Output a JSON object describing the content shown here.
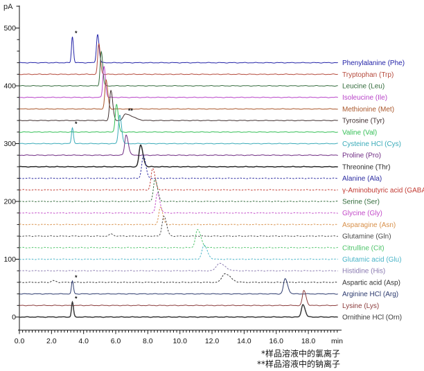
{
  "axes": {
    "y_unit": "pA",
    "x_unit": "min"
  },
  "footnotes": [
    "*样品溶液中的氯离子",
    "**样品溶液中的钠离子"
  ],
  "markers_legend": {
    "single_star": "*",
    "double_star": "**"
  },
  "chart_data": {
    "type": "line",
    "title": "",
    "x_axis": {
      "unit": "min",
      "min": 0,
      "max": 19.85,
      "major_tick": 2.0,
      "minor_tick": 0.2,
      "tick_labels": [
        "0.0",
        "2.0",
        "4.0",
        "6.0",
        "8.0",
        "10.0",
        "12.0",
        "14.0",
        "16.0",
        "18.0"
      ]
    },
    "y_axis": {
      "unit": "pA",
      "min": 0,
      "max": 500,
      "major_tick": 100,
      "minor_tick": 20,
      "tick_labels": [
        "0",
        "100",
        "200",
        "300",
        "400",
        "500"
      ]
    },
    "grid": false,
    "legend_position": "right",
    "series": [
      {
        "name": "Phenylalanine (Phe)",
        "color": "#2323a8",
        "dashed": false,
        "offset_pA": 440,
        "peaks": [
          {
            "rt_min": 3.3,
            "height_pA": 45,
            "sigma_min": 0.055,
            "tail": 1.2,
            "marker": "*"
          },
          {
            "rt_min": 4.87,
            "height_pA": 49,
            "sigma_min": 0.07,
            "tail": 1.3
          }
        ]
      },
      {
        "name": "Tryptophan (Trp)",
        "color": "#b54a3c",
        "dashed": false,
        "offset_pA": 420,
        "peaks": [
          {
            "rt_min": 4.95,
            "height_pA": 53,
            "sigma_min": 0.07,
            "tail": 1.3
          }
        ]
      },
      {
        "name": "Leucine (Leu)",
        "color": "#336b3c",
        "dashed": false,
        "offset_pA": 400,
        "peaks": [
          {
            "rt_min": 5.1,
            "height_pA": 59,
            "sigma_min": 0.07,
            "tail": 1.3
          }
        ]
      },
      {
        "name": "Isoleucine (Ile)",
        "color": "#b844c8",
        "dashed": false,
        "offset_pA": 380,
        "peaks": [
          {
            "rt_min": 5.27,
            "height_pA": 54,
            "sigma_min": 0.07,
            "tail": 1.3
          }
        ]
      },
      {
        "name": "Methionine (Met)",
        "color": "#a9562a",
        "dashed": false,
        "offset_pA": 360,
        "peaks": [
          {
            "rt_min": 5.4,
            "height_pA": 50,
            "sigma_min": 0.075,
            "tail": 1.4
          }
        ]
      },
      {
        "name": "Tyrosine (Tyr)",
        "color": "#403030",
        "dashed": false,
        "offset_pA": 340,
        "peaks": [
          {
            "rt_min": 5.7,
            "height_pA": 52,
            "sigma_min": 0.08,
            "tail": 1.4
          },
          {
            "rt_min": 6.62,
            "height_pA": 11,
            "sigma_min": 0.15,
            "tail": 3.0,
            "marker": "**"
          }
        ]
      },
      {
        "name": "Valine (Val)",
        "color": "#33bf55",
        "dashed": false,
        "offset_pA": 320,
        "peaks": [
          {
            "rt_min": 6.05,
            "height_pA": 48,
            "sigma_min": 0.08,
            "tail": 1.3
          }
        ]
      },
      {
        "name": "Cysteine HCl (Cys)",
        "color": "#38aab8",
        "dashed": false,
        "offset_pA": 300,
        "peaks": [
          {
            "rt_min": 3.3,
            "height_pA": 28,
            "sigma_min": 0.055,
            "tail": 1.2,
            "marker": "*"
          },
          {
            "rt_min": 6.25,
            "height_pA": 50,
            "sigma_min": 0.08,
            "tail": 1.4
          }
        ]
      },
      {
        "name": "Proline (Pro)",
        "color": "#6e2a82",
        "dashed": false,
        "offset_pA": 280,
        "peaks": [
          {
            "rt_min": 6.65,
            "height_pA": 35,
            "sigma_min": 0.09,
            "tail": 1.5
          }
        ]
      },
      {
        "name": "Threonine (Thr)",
        "color": "#2a2a2a",
        "dashed": false,
        "thick": true,
        "offset_pA": 260,
        "peaks": [
          {
            "rt_min": 7.55,
            "height_pA": 37,
            "sigma_min": 0.1,
            "tail": 1.5
          }
        ]
      },
      {
        "name": "Alanine (Ala)",
        "color": "#2a2aa0",
        "dashed": true,
        "offset_pA": 240,
        "peaks": [
          {
            "rt_min": 7.72,
            "height_pA": 39,
            "sigma_min": 0.1,
            "tail": 1.5
          }
        ]
      },
      {
        "name": "γ-Aminobutyric acid (GABA)",
        "color": "#c23a32",
        "dashed": true,
        "offset_pA": 220,
        "peaks": [
          {
            "rt_min": 8.3,
            "height_pA": 37,
            "sigma_min": 0.1,
            "tail": 1.5
          }
        ]
      },
      {
        "name": "Serine (Ser)",
        "color": "#336b3c",
        "dashed": true,
        "offset_pA": 200,
        "peaks": [
          {
            "rt_min": 8.45,
            "height_pA": 39,
            "sigma_min": 0.1,
            "tail": 1.5
          }
        ]
      },
      {
        "name": "Glycine (Gly)",
        "color": "#c24ac8",
        "dashed": true,
        "offset_pA": 180,
        "peaks": [
          {
            "rt_min": 8.6,
            "height_pA": 35,
            "sigma_min": 0.1,
            "tail": 1.5
          }
        ]
      },
      {
        "name": "Asparagine (Asn)",
        "color": "#d8904a",
        "dashed": true,
        "offset_pA": 160,
        "peaks": [
          {
            "rt_min": 8.78,
            "height_pA": 30,
            "sigma_min": 0.1,
            "tail": 1.5
          }
        ]
      },
      {
        "name": "Glutamine (Gln)",
        "color": "#4a4a4a",
        "dashed": true,
        "offset_pA": 140,
        "peaks": [
          {
            "rt_min": 5.7,
            "height_pA": 4,
            "sigma_min": 0.09,
            "tail": 1.5
          },
          {
            "rt_min": 9.0,
            "height_pA": 35,
            "sigma_min": 0.11,
            "tail": 1.5
          }
        ]
      },
      {
        "name": "Citrulline (Cit)",
        "color": "#4ec46a",
        "dashed": true,
        "offset_pA": 120,
        "peaks": [
          {
            "rt_min": 11.1,
            "height_pA": 31,
            "sigma_min": 0.13,
            "tail": 1.6
          }
        ]
      },
      {
        "name": "Glutamic acid (Glu)",
        "color": "#4ab4c8",
        "dashed": true,
        "offset_pA": 100,
        "peaks": [
          {
            "rt_min": 11.5,
            "height_pA": 24,
            "sigma_min": 0.13,
            "tail": 1.6
          }
        ]
      },
      {
        "name": "Histidine (His)",
        "color": "#8a7ab0",
        "dashed": true,
        "offset_pA": 80,
        "peaks": [
          {
            "rt_min": 12.45,
            "height_pA": 13,
            "sigma_min": 0.18,
            "tail": 1.9
          }
        ]
      },
      {
        "name": "Aspartic acid (Asp)",
        "color": "#333333",
        "dashed": true,
        "offset_pA": 60,
        "peaks": [
          {
            "rt_min": 2.1,
            "height_pA": 3,
            "sigma_min": 0.1,
            "tail": 1.5
          },
          {
            "rt_min": 12.8,
            "height_pA": 15,
            "sigma_min": 0.18,
            "tail": 1.9
          }
        ]
      },
      {
        "name": "Arginine HCl (Arg)",
        "color": "#2c3a6e",
        "dashed": false,
        "offset_pA": 40,
        "peaks": [
          {
            "rt_min": 3.3,
            "height_pA": 22,
            "sigma_min": 0.055,
            "tail": 1.2,
            "marker": "*"
          },
          {
            "rt_min": 16.55,
            "height_pA": 26,
            "sigma_min": 0.1,
            "tail": 1.6
          }
        ]
      },
      {
        "name": "Lysine (Lys)",
        "color": "#8a3a3a",
        "dashed": false,
        "offset_pA": 20,
        "peaks": [
          {
            "rt_min": 17.72,
            "height_pA": 26,
            "sigma_min": 0.09,
            "tail": 1.5
          }
        ]
      },
      {
        "name": "Ornithine HCl (Orn)",
        "color": "#3a3a3a",
        "dashed": false,
        "thick": true,
        "offset_pA": 0,
        "peaks": [
          {
            "rt_min": 3.3,
            "height_pA": 26,
            "sigma_min": 0.055,
            "tail": 1.2,
            "marker": "*"
          },
          {
            "rt_min": 17.66,
            "height_pA": 22,
            "sigma_min": 0.09,
            "tail": 1.5
          }
        ]
      }
    ]
  }
}
